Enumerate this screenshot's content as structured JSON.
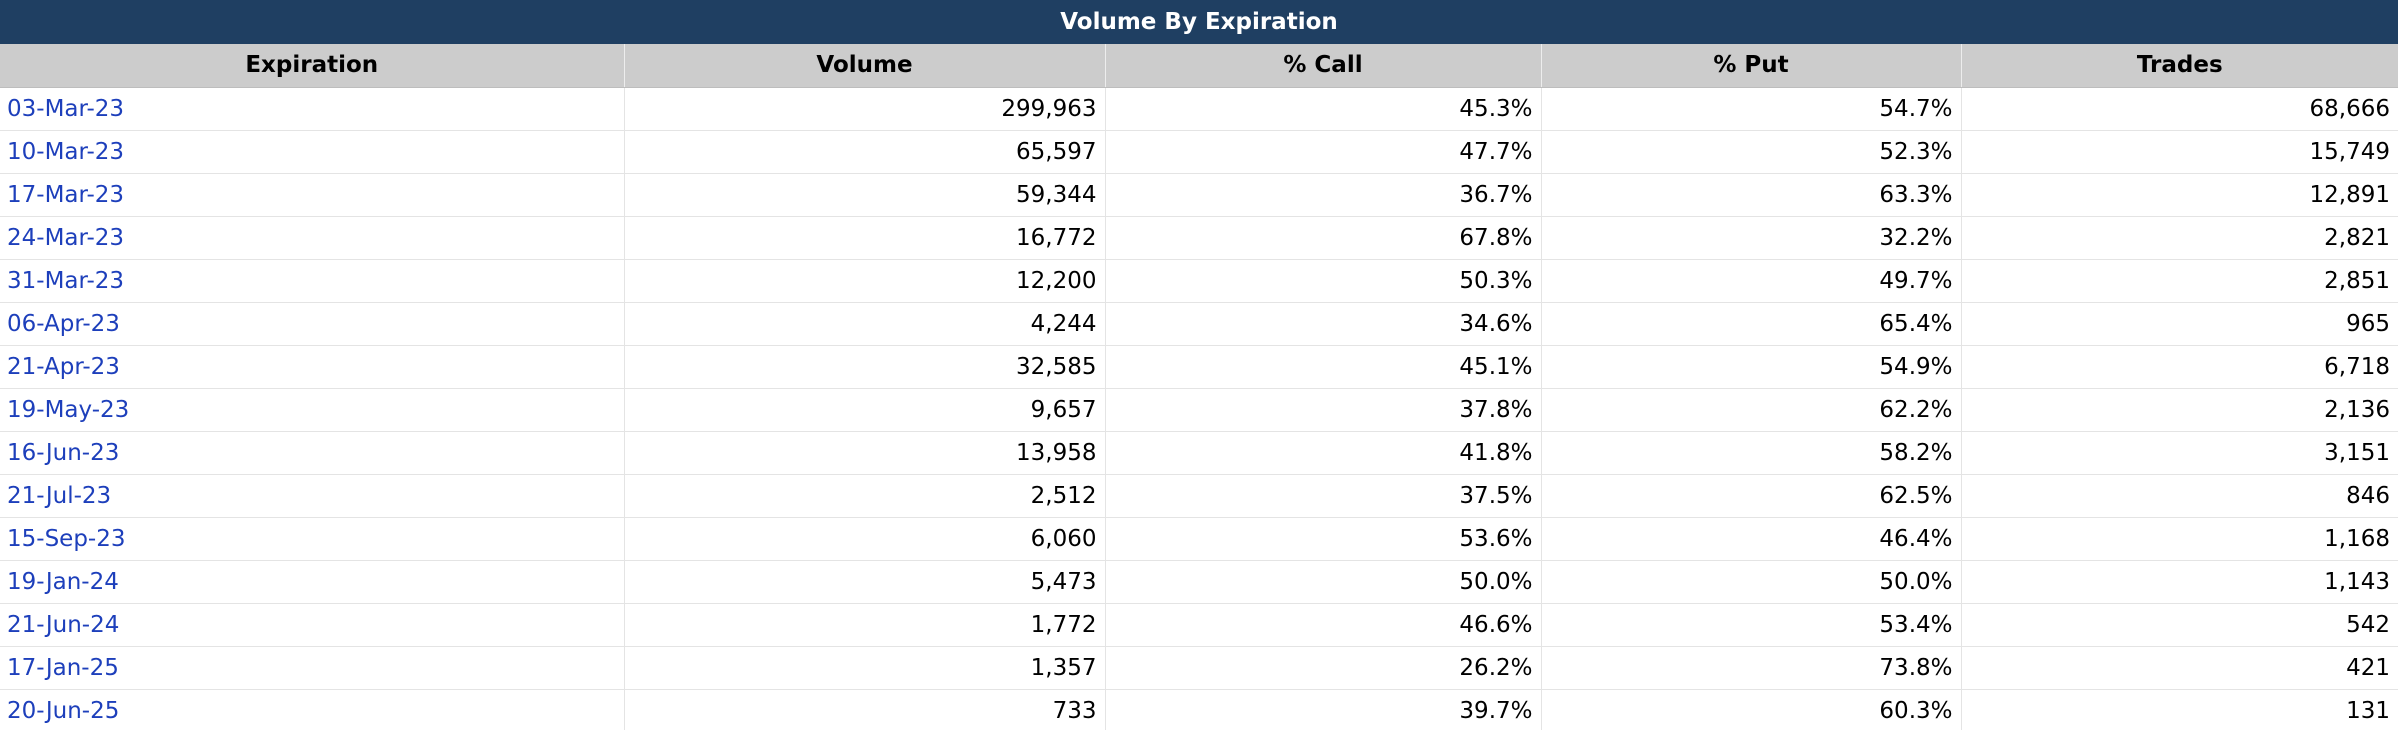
{
  "title": "Volume By Expiration",
  "columns": [
    "Expiration",
    "Volume",
    "% Call",
    "% Put",
    "Trades"
  ],
  "colors": {
    "header_bg": "#1f3f62",
    "column_header_bg": "#cccccc",
    "link": "#1d3fbb"
  },
  "rows": [
    {
      "expiration": "03-Mar-23",
      "volume": "299,963",
      "call": "45.3%",
      "put": "54.7%",
      "trades": "68,666"
    },
    {
      "expiration": "10-Mar-23",
      "volume": "65,597",
      "call": "47.7%",
      "put": "52.3%",
      "trades": "15,749"
    },
    {
      "expiration": "17-Mar-23",
      "volume": "59,344",
      "call": "36.7%",
      "put": "63.3%",
      "trades": "12,891"
    },
    {
      "expiration": "24-Mar-23",
      "volume": "16,772",
      "call": "67.8%",
      "put": "32.2%",
      "trades": "2,821"
    },
    {
      "expiration": "31-Mar-23",
      "volume": "12,200",
      "call": "50.3%",
      "put": "49.7%",
      "trades": "2,851"
    },
    {
      "expiration": "06-Apr-23",
      "volume": "4,244",
      "call": "34.6%",
      "put": "65.4%",
      "trades": "965"
    },
    {
      "expiration": "21-Apr-23",
      "volume": "32,585",
      "call": "45.1%",
      "put": "54.9%",
      "trades": "6,718"
    },
    {
      "expiration": "19-May-23",
      "volume": "9,657",
      "call": "37.8%",
      "put": "62.2%",
      "trades": "2,136"
    },
    {
      "expiration": "16-Jun-23",
      "volume": "13,958",
      "call": "41.8%",
      "put": "58.2%",
      "trades": "3,151"
    },
    {
      "expiration": "21-Jul-23",
      "volume": "2,512",
      "call": "37.5%",
      "put": "62.5%",
      "trades": "846"
    },
    {
      "expiration": "15-Sep-23",
      "volume": "6,060",
      "call": "53.6%",
      "put": "46.4%",
      "trades": "1,168"
    },
    {
      "expiration": "19-Jan-24",
      "volume": "5,473",
      "call": "50.0%",
      "put": "50.0%",
      "trades": "1,143"
    },
    {
      "expiration": "21-Jun-24",
      "volume": "1,772",
      "call": "46.6%",
      "put": "53.4%",
      "trades": "542"
    },
    {
      "expiration": "17-Jan-25",
      "volume": "1,357",
      "call": "26.2%",
      "put": "73.8%",
      "trades": "421"
    },
    {
      "expiration": "20-Jun-25",
      "volume": "733",
      "call": "39.7%",
      "put": "60.3%",
      "trades": "131"
    }
  ]
}
